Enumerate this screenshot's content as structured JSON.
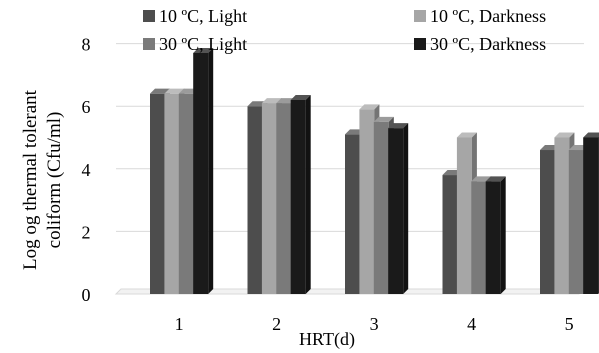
{
  "chart_data": {
    "type": "bar",
    "categories": [
      "1",
      "2",
      "3",
      "4",
      "5"
    ],
    "series": [
      {
        "name": "10 ºC, Light",
        "values": [
          6.4,
          6.0,
          5.1,
          3.8,
          4.6
        ],
        "color": "#4d4d4d"
      },
      {
        "name": "10 ºC, Darkness",
        "values": [
          6.4,
          6.1,
          5.9,
          5.0,
          5.0
        ],
        "color": "#a6a6a6"
      },
      {
        "name": "30 ºC, Light",
        "values": [
          6.4,
          6.1,
          5.5,
          3.6,
          4.6
        ],
        "color": "#7a7a7a"
      },
      {
        "name": "30 ºC, Darkness",
        "values": [
          7.7,
          6.2,
          5.3,
          3.6,
          5.0
        ],
        "color": "#1a1a1a"
      }
    ],
    "yticks": [
      "0",
      "2",
      "4",
      "6",
      "8"
    ],
    "ylim": [
      0,
      8
    ],
    "xlabel": "HRT(d)",
    "ylabel": "Log og thermal tolerant coliform (Cfu/ml)",
    "ylabel_lines": [
      "Log og thermal tolerant",
      "coliform (Cfu/ml)"
    ],
    "grid": true,
    "legend_position": "top"
  }
}
